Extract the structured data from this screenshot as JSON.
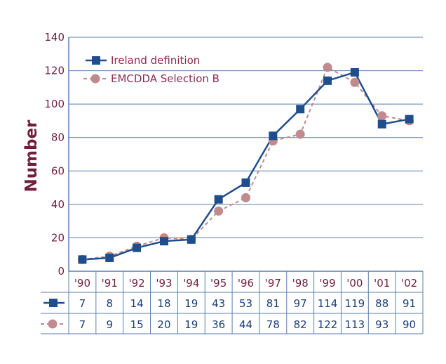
{
  "chart_data": {
    "type": "line",
    "ylabel": "Number",
    "ylim": [
      0,
      140
    ],
    "yticks": [
      "0",
      "20",
      "40",
      "60",
      "80",
      "100",
      "120",
      "140"
    ],
    "categories": [
      "'90",
      "'91",
      "'92",
      "'93",
      "'94",
      "'95",
      "'96",
      "'97",
      "'98",
      "'99",
      "'00",
      "'01",
      "'02"
    ],
    "grid": true,
    "legend_position": "top-left",
    "series": [
      {
        "name": "Ireland definition",
        "marker": "square",
        "line": "solid",
        "color": "#1f4e8c",
        "values": [
          7,
          8,
          14,
          18,
          19,
          43,
          53,
          81,
          97,
          114,
          119,
          88,
          91
        ]
      },
      {
        "name": "EMCDDA Selection B",
        "marker": "circle",
        "line": "dashed",
        "color": "#c08a8e",
        "values": [
          7,
          9,
          15,
          20,
          19,
          36,
          44,
          78,
          82,
          122,
          113,
          93,
          90
        ]
      }
    ],
    "table": [
      [
        "7",
        "8",
        "14",
        "18",
        "19",
        "43",
        "53",
        "81",
        "97",
        "114",
        "119",
        "88",
        "91"
      ],
      [
        "7",
        "9",
        "15",
        "20",
        "19",
        "36",
        "44",
        "78",
        "82",
        "122",
        "113",
        "93",
        "90"
      ]
    ]
  },
  "colors": {
    "text": "#6e1f3c",
    "axis": "#5a7fb0",
    "grid": "#5a7fb0"
  }
}
